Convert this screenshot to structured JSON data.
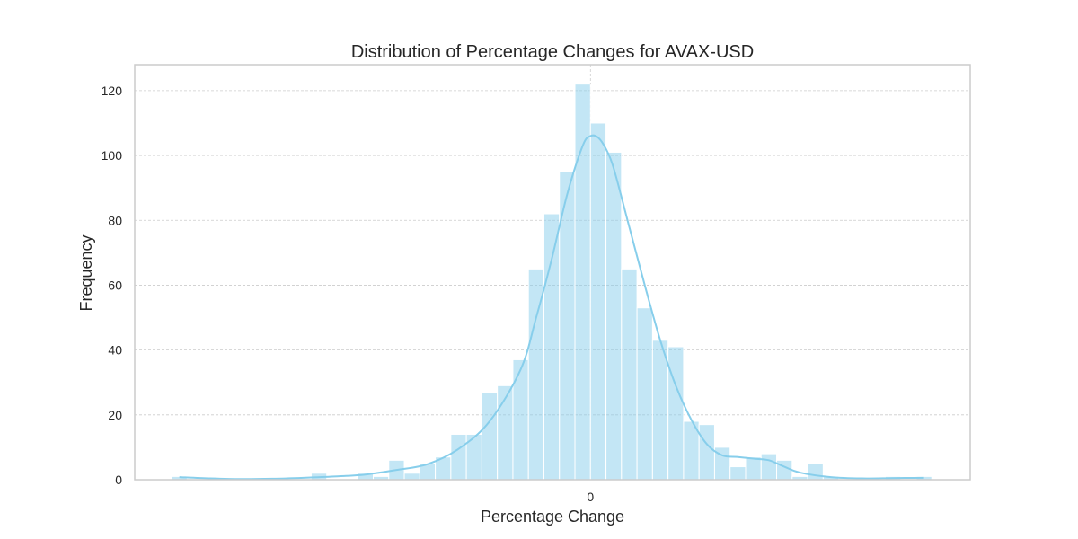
{
  "chart_data": {
    "type": "histogram",
    "title": "Distribution of Percentage Changes for AVAX-USD",
    "xlabel": "Percentage Change",
    "ylabel": "Frequency",
    "ylim": [
      0,
      128
    ],
    "yticks": [
      0,
      20,
      40,
      60,
      80,
      100,
      120
    ],
    "xticks": [
      0
    ],
    "grid": true,
    "bar_color": "#87ceeb",
    "kde": true,
    "kde_color": "#87ceeb",
    "bins": [
      {
        "bin": -27,
        "value": 1
      },
      {
        "bin": -26,
        "value": 0
      },
      {
        "bin": -25,
        "value": 0
      },
      {
        "bin": -24,
        "value": 0
      },
      {
        "bin": -23,
        "value": 0
      },
      {
        "bin": -22,
        "value": 0
      },
      {
        "bin": -21,
        "value": 0
      },
      {
        "bin": -20,
        "value": 0
      },
      {
        "bin": -19,
        "value": 0
      },
      {
        "bin": -18,
        "value": 2
      },
      {
        "bin": -17,
        "value": 0
      },
      {
        "bin": -16,
        "value": 0
      },
      {
        "bin": -15,
        "value": 2
      },
      {
        "bin": -14,
        "value": 1
      },
      {
        "bin": -13,
        "value": 6
      },
      {
        "bin": -12,
        "value": 2
      },
      {
        "bin": -11,
        "value": 5
      },
      {
        "bin": -10,
        "value": 7
      },
      {
        "bin": -9,
        "value": 14
      },
      {
        "bin": -8,
        "value": 14
      },
      {
        "bin": -7,
        "value": 27
      },
      {
        "bin": -6,
        "value": 29
      },
      {
        "bin": -5,
        "value": 37
      },
      {
        "bin": -4,
        "value": 65
      },
      {
        "bin": -3,
        "value": 82
      },
      {
        "bin": -2,
        "value": 95
      },
      {
        "bin": -1,
        "value": 122
      },
      {
        "bin": 0,
        "value": 110
      },
      {
        "bin": 1,
        "value": 101
      },
      {
        "bin": 2,
        "value": 65
      },
      {
        "bin": 3,
        "value": 53
      },
      {
        "bin": 4,
        "value": 43
      },
      {
        "bin": 5,
        "value": 41
      },
      {
        "bin": 6,
        "value": 18
      },
      {
        "bin": 7,
        "value": 17
      },
      {
        "bin": 8,
        "value": 10
      },
      {
        "bin": 9,
        "value": 4
      },
      {
        "bin": 10,
        "value": 7
      },
      {
        "bin": 11,
        "value": 8
      },
      {
        "bin": 12,
        "value": 6
      },
      {
        "bin": 13,
        "value": 1
      },
      {
        "bin": 14,
        "value": 5
      },
      {
        "bin": 15,
        "value": 1
      },
      {
        "bin": 16,
        "value": 0
      },
      {
        "bin": 17,
        "value": 0
      },
      {
        "bin": 18,
        "value": 0
      },
      {
        "bin": 19,
        "value": 1
      },
      {
        "bin": 20,
        "value": 0
      },
      {
        "bin": 21,
        "value": 1
      }
    ],
    "kde_points": [
      [
        -27,
        0.8
      ],
      [
        -25,
        0.4
      ],
      [
        -23,
        0.2
      ],
      [
        -21,
        0.3
      ],
      [
        -19,
        0.6
      ],
      [
        -17,
        1.0
      ],
      [
        -15,
        1.6
      ],
      [
        -13,
        3.0
      ],
      [
        -11,
        4.8
      ],
      [
        -9,
        9.5
      ],
      [
        -7,
        18
      ],
      [
        -5,
        34
      ],
      [
        -4,
        50
      ],
      [
        -3,
        68
      ],
      [
        -2,
        88
      ],
      [
        -1,
        103
      ],
      [
        -0.5,
        106
      ],
      [
        0,
        105.5
      ],
      [
        0.5,
        102
      ],
      [
        1,
        96
      ],
      [
        2,
        78
      ],
      [
        3,
        60
      ],
      [
        4,
        43
      ],
      [
        5,
        29
      ],
      [
        6,
        18.5
      ],
      [
        7,
        11
      ],
      [
        8,
        7.5
      ],
      [
        9,
        7
      ],
      [
        10,
        6.5
      ],
      [
        11,
        6
      ],
      [
        12,
        4
      ],
      [
        13,
        2.2
      ],
      [
        15,
        0.8
      ],
      [
        17,
        0.4
      ],
      [
        19,
        0.5
      ],
      [
        21,
        0.6
      ]
    ]
  }
}
